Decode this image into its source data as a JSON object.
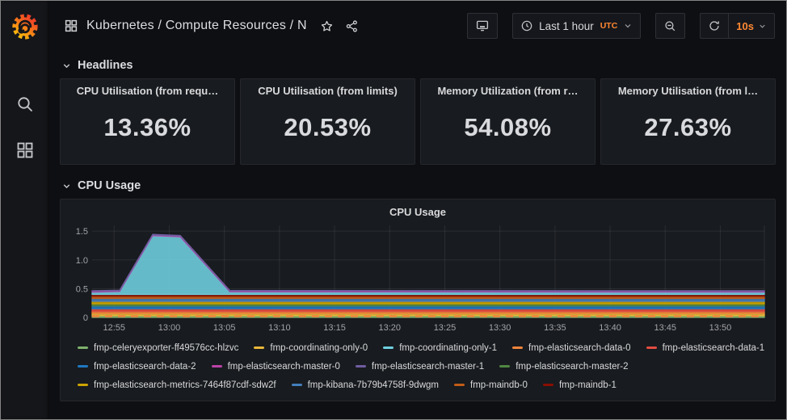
{
  "header": {
    "title": "Kubernetes / Compute Resources / N",
    "time_range": {
      "label": "Last 1 hour",
      "timezone": "UTC"
    },
    "refresh_interval": "10s"
  },
  "sections": {
    "headlines": "Headlines",
    "cpu_usage": "CPU Usage"
  },
  "sidebar_icons": [
    "grafana-logo",
    "search-icon",
    "dashboards-icon"
  ],
  "header_icons": [
    "dashboard-grid-icon",
    "star-icon",
    "share-icon",
    "cycle-view-icon",
    "clock-icon",
    "zoom-out-icon",
    "refresh-icon"
  ],
  "stats": [
    {
      "title": "CPU Utilisation (from requ…",
      "value": "13.36%"
    },
    {
      "title": "CPU Utilisation (from limits)",
      "value": "20.53%"
    },
    {
      "title": "Memory Utilization (from r…",
      "value": "54.08%"
    },
    {
      "title": "Memory Utilisation (from l…",
      "value": "27.63%"
    }
  ],
  "colors": {
    "accent_orange": "#ff8833",
    "page_bg": "#0e0f13",
    "panel_bg": "#181b1f",
    "grid": "rgba(204,204,220,0.10)"
  },
  "chart_data": {
    "type": "area",
    "stacked": true,
    "title": "CPU Usage",
    "xlabel": "",
    "ylabel": "",
    "ylim": [
      0,
      1.6
    ],
    "y_ticks": [
      0,
      0.5,
      1.0,
      1.5
    ],
    "y_tick_labels": [
      "0",
      "0.5",
      "1.0",
      "1.5"
    ],
    "x_domain_minutes": [
      0,
      61
    ],
    "x_tick_minutes": [
      2,
      7,
      12,
      17,
      22,
      27,
      32,
      37,
      42,
      47,
      52,
      57
    ],
    "x_ticks": [
      "12:55",
      "13:00",
      "13:05",
      "13:10",
      "13:15",
      "13:20",
      "13:25",
      "13:30",
      "13:35",
      "13:40",
      "13:45",
      "13:50"
    ],
    "sample_minutes": [
      0,
      2.5,
      5.5,
      8,
      12.5,
      61
    ],
    "grid": true,
    "legend_position": "bottom",
    "legend_rows": [
      5,
      4,
      4
    ],
    "stack_order": [
      0,
      1,
      3,
      4,
      5,
      8,
      9,
      10,
      11,
      12,
      2,
      6,
      7
    ],
    "zero_line": {
      "color": "#EF843C",
      "dashed": true
    },
    "series": [
      {
        "name": "fmp-celeryexporter-ff49576cc-hlzvc",
        "color": "#7EB26D",
        "values": [
          0.03,
          0.03,
          0.03,
          0.03,
          0.03,
          0.03
        ]
      },
      {
        "name": "fmp-coordinating-only-0",
        "color": "#EAB839",
        "values": [
          0.04,
          0.04,
          0.04,
          0.04,
          0.04,
          0.04
        ]
      },
      {
        "name": "fmp-coordinating-only-1",
        "color": "#6ED0E0",
        "values": [
          0.04,
          0.05,
          1.02,
          1.0,
          0.045,
          0.04
        ]
      },
      {
        "name": "fmp-elasticsearch-data-0",
        "color": "#EF843C",
        "values": [
          0.035,
          0.035,
          0.035,
          0.035,
          0.035,
          0.035
        ]
      },
      {
        "name": "fmp-elasticsearch-data-1",
        "color": "#E24D42",
        "values": [
          0.045,
          0.045,
          0.045,
          0.045,
          0.045,
          0.045
        ]
      },
      {
        "name": "fmp-elasticsearch-data-2",
        "color": "#1F78C1",
        "values": [
          0.05,
          0.05,
          0.05,
          0.05,
          0.05,
          0.05
        ]
      },
      {
        "name": "fmp-elasticsearch-master-0",
        "color": "#BA43A9",
        "values": [
          0.012,
          0.012,
          0.012,
          0.012,
          0.012,
          0.012
        ]
      },
      {
        "name": "fmp-elasticsearch-master-1",
        "color": "#705DA0",
        "values": [
          0.012,
          0.012,
          0.012,
          0.012,
          0.012,
          0.012
        ]
      },
      {
        "name": "fmp-elasticsearch-master-2",
        "color": "#508642",
        "values": [
          0.035,
          0.035,
          0.035,
          0.035,
          0.035,
          0.035
        ]
      },
      {
        "name": "fmp-elasticsearch-metrics-7464f87cdf-sdw2f",
        "color": "#CCA300",
        "values": [
          0.045,
          0.045,
          0.045,
          0.045,
          0.045,
          0.045
        ]
      },
      {
        "name": "fmp-kibana-7b79b4758f-9dwgm",
        "color": "#447EBC",
        "values": [
          0.05,
          0.05,
          0.05,
          0.05,
          0.05,
          0.05
        ]
      },
      {
        "name": "fmp-maindb-0",
        "color": "#C15C17",
        "values": [
          0.04,
          0.04,
          0.04,
          0.04,
          0.04,
          0.04
        ]
      },
      {
        "name": "fmp-maindb-1",
        "color": "#890F02",
        "values": [
          0.03,
          0.03,
          0.03,
          0.03,
          0.03,
          0.03
        ]
      }
    ]
  }
}
